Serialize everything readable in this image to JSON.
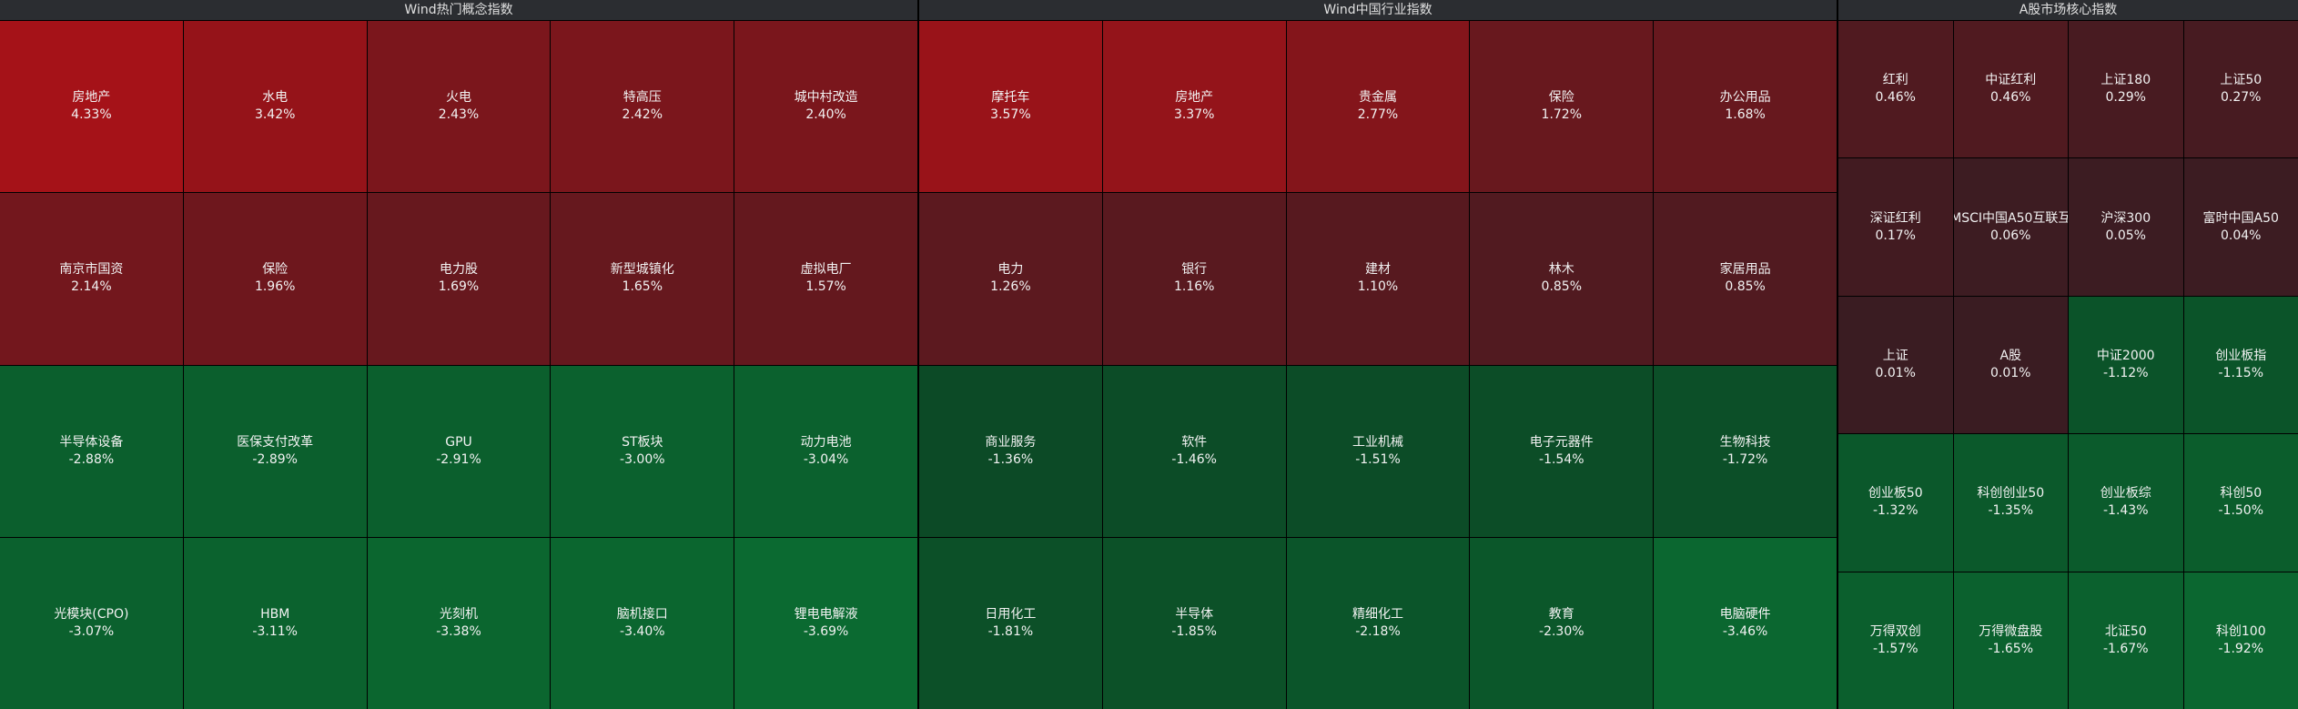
{
  "panels": [
    {
      "title": "Wind热门概念指数",
      "cells": [
        [
          "房地产",
          "4.33%"
        ],
        [
          "水电",
          "3.42%"
        ],
        [
          "火电",
          "2.43%"
        ],
        [
          "特高压",
          "2.42%"
        ],
        [
          "城中村改造",
          "2.40%"
        ],
        [
          "南京市国资",
          "2.14%"
        ],
        [
          "保险",
          "1.96%"
        ],
        [
          "电力股",
          "1.69%"
        ],
        [
          "新型城镇化",
          "1.65%"
        ],
        [
          "虚拟电厂",
          "1.57%"
        ],
        [
          "半导体设备",
          "-2.88%"
        ],
        [
          "医保支付改革",
          "-2.89%"
        ],
        [
          "GPU",
          "-2.91%"
        ],
        [
          "ST板块",
          "-3.00%"
        ],
        [
          "动力电池",
          "-3.04%"
        ],
        [
          "光模块(CPO)",
          "-3.07%"
        ],
        [
          "HBM",
          "-3.11%"
        ],
        [
          "光刻机",
          "-3.38%"
        ],
        [
          "脑机接口",
          "-3.40%"
        ],
        [
          "锂电电解液",
          "-3.69%"
        ]
      ]
    },
    {
      "title": "Wind中国行业指数",
      "cells": [
        [
          "摩托车",
          "3.57%"
        ],
        [
          "房地产",
          "3.37%"
        ],
        [
          "贵金属",
          "2.77%"
        ],
        [
          "保险",
          "1.72%"
        ],
        [
          "办公用品",
          "1.68%"
        ],
        [
          "电力",
          "1.26%"
        ],
        [
          "银行",
          "1.16%"
        ],
        [
          "建材",
          "1.10%"
        ],
        [
          "林木",
          "0.85%"
        ],
        [
          "家居用品",
          "0.85%"
        ],
        [
          "商业服务",
          "-1.36%"
        ],
        [
          "软件",
          "-1.46%"
        ],
        [
          "工业机械",
          "-1.51%"
        ],
        [
          "电子元器件",
          "-1.54%"
        ],
        [
          "生物科技",
          "-1.72%"
        ],
        [
          "日用化工",
          "-1.81%"
        ],
        [
          "半导体",
          "-1.85%"
        ],
        [
          "精细化工",
          "-2.18%"
        ],
        [
          "教育",
          "-2.30%"
        ],
        [
          "电脑硬件",
          "-3.46%"
        ]
      ]
    },
    {
      "title": "A股市场核心指数",
      "cells": [
        [
          "红利",
          "0.46%"
        ],
        [
          "中证红利",
          "0.46%"
        ],
        [
          "上证180",
          "0.29%"
        ],
        [
          "上证50",
          "0.27%"
        ],
        [
          "深证红利",
          "0.17%"
        ],
        [
          "MSCI中国A50互联互",
          "0.06%"
        ],
        [
          "沪深300",
          "0.05%"
        ],
        [
          "富时中国A50",
          "0.04%"
        ],
        [
          "上证",
          "0.01%"
        ],
        [
          "A股",
          "0.01%"
        ],
        [
          "中证2000",
          "-1.12%"
        ],
        [
          "创业板指",
          "-1.15%"
        ],
        [
          "创业板50",
          "-1.32%"
        ],
        [
          "科创创业50",
          "-1.35%"
        ],
        [
          "创业板综",
          "-1.43%"
        ],
        [
          "科创50",
          "-1.50%"
        ],
        [
          "万得双创",
          "-1.57%"
        ],
        [
          "万得微盘股",
          "-1.65%"
        ],
        [
          "北证50",
          "-1.67%"
        ],
        [
          "科创100",
          "-1.92%"
        ]
      ]
    }
  ]
}
